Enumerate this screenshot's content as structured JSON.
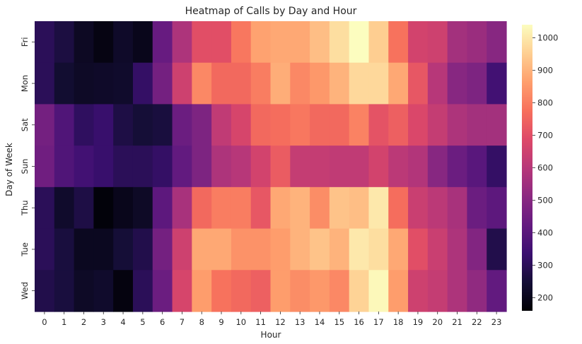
{
  "chart_data": {
    "type": "heatmap",
    "title": "Heatmap of Calls by Day and Hour",
    "xlabel": "Hour",
    "ylabel": "Day of Week",
    "x_categories": [
      "0",
      "1",
      "2",
      "3",
      "4",
      "5",
      "6",
      "7",
      "8",
      "9",
      "10",
      "11",
      "12",
      "13",
      "14",
      "15",
      "16",
      "17",
      "18",
      "19",
      "20",
      "21",
      "22",
      "23"
    ],
    "y_categories": [
      "Fri",
      "Mon",
      "Sat",
      "Sun",
      "Thu",
      "Tue",
      "Wed"
    ],
    "values": [
      [
        300,
        265,
        215,
        185,
        225,
        200,
        430,
        580,
        700,
        700,
        790,
        870,
        880,
        880,
        920,
        980,
        1040,
        950,
        780,
        660,
        650,
        560,
        540,
        500
      ],
      [
        300,
        240,
        220,
        225,
        230,
        320,
        460,
        650,
        820,
        760,
        760,
        800,
        890,
        820,
        850,
        900,
        970,
        970,
        880,
        720,
        600,
        500,
        480,
        350
      ],
      [
        460,
        380,
        310,
        330,
        270,
        250,
        260,
        440,
        480,
        620,
        670,
        760,
        770,
        790,
        760,
        760,
        810,
        710,
        740,
        680,
        630,
        580,
        560,
        560
      ],
      [
        450,
        380,
        350,
        330,
        300,
        300,
        320,
        420,
        480,
        580,
        600,
        660,
        730,
        630,
        630,
        620,
        620,
        660,
        610,
        590,
        500,
        440,
        400,
        320
      ],
      [
        300,
        230,
        270,
        170,
        200,
        220,
        410,
        570,
        760,
        800,
        800,
        720,
        880,
        900,
        830,
        930,
        920,
        1000,
        770,
        640,
        610,
        570,
        440,
        410
      ],
      [
        300,
        260,
        210,
        210,
        250,
        280,
        460,
        650,
        880,
        880,
        840,
        840,
        860,
        900,
        930,
        900,
        1000,
        980,
        880,
        700,
        640,
        580,
        490,
        280
      ],
      [
        280,
        260,
        220,
        230,
        180,
        300,
        440,
        670,
        860,
        780,
        760,
        740,
        860,
        830,
        850,
        820,
        960,
        1030,
        860,
        650,
        630,
        580,
        520,
        420
      ]
    ],
    "colorscale": "magma",
    "vmin": 160,
    "vmax": 1040,
    "colorbar_ticks": [
      "200",
      "300",
      "400",
      "500",
      "600",
      "700",
      "800",
      "900",
      "1000"
    ],
    "grid": false
  }
}
